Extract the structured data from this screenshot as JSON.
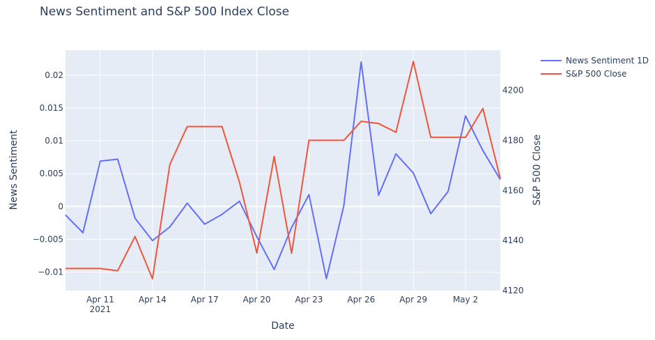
{
  "chart_data": {
    "type": "line",
    "title": "News Sentiment and S&P 500 Index Close",
    "xlabel": "Date",
    "ylabel": "News Sentiment",
    "y2label": "S&P 500 Close",
    "x": [
      "2021-04-09",
      "2021-04-10",
      "2021-04-11",
      "2021-04-12",
      "2021-04-13",
      "2021-04-14",
      "2021-04-15",
      "2021-04-16",
      "2021-04-17",
      "2021-04-18",
      "2021-04-19",
      "2021-04-20",
      "2021-04-21",
      "2021-04-22",
      "2021-04-23",
      "2021-04-24",
      "2021-04-25",
      "2021-04-26",
      "2021-04-27",
      "2021-04-28",
      "2021-04-29",
      "2021-04-30",
      "2021-05-01",
      "2021-05-02",
      "2021-05-03",
      "2021-05-04"
    ],
    "xlim": [
      "2021-04-09",
      "2021-05-04"
    ],
    "x_ticks": [
      {
        "date": "2021-04-11",
        "label": "Apr 11",
        "sublabel": "2021"
      },
      {
        "date": "2021-04-14",
        "label": "Apr 14"
      },
      {
        "date": "2021-04-17",
        "label": "Apr 17"
      },
      {
        "date": "2021-04-20",
        "label": "Apr 20"
      },
      {
        "date": "2021-04-23",
        "label": "Apr 23"
      },
      {
        "date": "2021-04-26",
        "label": "Apr 26"
      },
      {
        "date": "2021-04-29",
        "label": "Apr 29"
      },
      {
        "date": "2021-05-02",
        "label": "May 2"
      }
    ],
    "ylim": [
      -0.0128,
      0.0238
    ],
    "y_ticks": [
      {
        "value": -0.01,
        "label": "−0.01"
      },
      {
        "value": -0.005,
        "label": "−0.005"
      },
      {
        "value": 0,
        "label": "0"
      },
      {
        "value": 0.005,
        "label": "0.005"
      },
      {
        "value": 0.01,
        "label": "0.01"
      },
      {
        "value": 0.015,
        "label": "0.015"
      },
      {
        "value": 0.02,
        "label": "0.02"
      }
    ],
    "y2lim": [
      4120,
      4216
    ],
    "y2_ticks": [
      {
        "value": 4120,
        "label": "4120"
      },
      {
        "value": 4140,
        "label": "4140"
      },
      {
        "value": 4160,
        "label": "4160"
      },
      {
        "value": 4180,
        "label": "4180"
      },
      {
        "value": 4200,
        "label": "4200"
      }
    ],
    "grid": true,
    "legend_position": "top-right",
    "series": [
      {
        "name": "News Sentiment 1D",
        "axis": "y",
        "color": "#636efa",
        "values": [
          -0.0013,
          -0.004,
          0.0069,
          0.0072,
          -0.0018,
          -0.0052,
          -0.0031,
          0.0005,
          -0.0027,
          -0.0012,
          0.0008,
          -0.0046,
          -0.0096,
          -0.0032,
          0.0018,
          -0.011,
          0.0001,
          0.022,
          0.0017,
          0.008,
          0.0051,
          -0.0011,
          0.0023,
          0.0138,
          0.0085,
          0.0041
        ]
      },
      {
        "name": "S&P 500 Close",
        "axis": "y2",
        "color": "#ef553b",
        "values": [
          4128.8,
          4128.8,
          4128.8,
          4127.9,
          4141.6,
          4124.7,
          4170.4,
          4185.5,
          4185.5,
          4185.5,
          4163.3,
          4135.0,
          4173.6,
          4134.9,
          4180.0,
          4180.0,
          4180.0,
          4187.6,
          4186.7,
          4183.2,
          4211.5,
          4181.2,
          4181.2,
          4181.2,
          4192.7,
          4164.7
        ]
      }
    ]
  }
}
